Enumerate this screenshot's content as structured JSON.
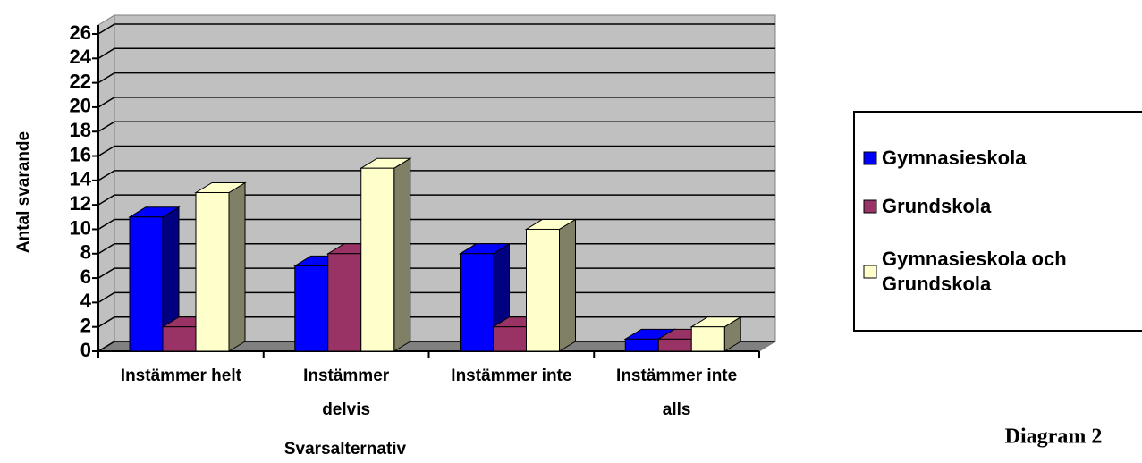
{
  "chart_data": {
    "type": "bar3d",
    "x_label": "Svarsalternativ",
    "y_label": "Antal svarande",
    "caption": "Diagram 2",
    "categories": [
      "Instämmer helt",
      "Instämmer delvis",
      "Instämmer inte",
      "Instämmer inte alls"
    ],
    "series": [
      {
        "name": "Gymnasieskola",
        "color": "#0000ff",
        "side": "#000080",
        "values": [
          11,
          7,
          8,
          1
        ]
      },
      {
        "name": "Grundskola",
        "color": "#993366",
        "side": "#5c1f3d",
        "values": [
          2,
          8,
          2,
          1
        ]
      },
      {
        "name": "Gymnasieskola och Grundskola",
        "color": "#ffffcc",
        "side": "#808066",
        "values": [
          13,
          15,
          10,
          2
        ]
      }
    ],
    "ylim": [
      0,
      26
    ],
    "yticks": [
      0,
      2,
      4,
      6,
      8,
      10,
      12,
      14,
      16,
      18,
      20,
      22,
      24,
      26
    ],
    "grid": true,
    "legend": "right"
  }
}
